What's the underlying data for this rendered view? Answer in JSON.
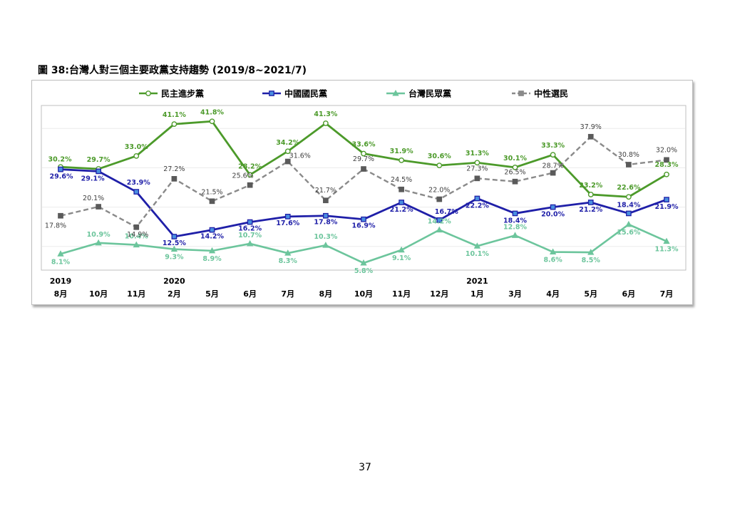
{
  "figure_title": "圖 38:台灣人對三個主要政黨支持趨勢 (2019/8~2021/7)",
  "page_number": "37",
  "chart_data": {
    "type": "line",
    "years": [
      {
        "label": "2019",
        "index": 0
      },
      {
        "label": "2020",
        "index": 3
      },
      {
        "label": "2021",
        "index": 11
      }
    ],
    "categories": [
      "8月",
      "10月",
      "11月",
      "2月",
      "5月",
      "6月",
      "7月",
      "8月",
      "10月",
      "11月",
      "12月",
      "1月",
      "3月",
      "4月",
      "5月",
      "6月",
      "7月"
    ],
    "ylim": [
      0,
      50
    ],
    "grid": true,
    "legend_position": "top",
    "series": [
      {
        "name": "民主進步黨",
        "color": "#4c9a2a",
        "marker": "circle",
        "dashed": false,
        "values": [
          30.2,
          29.7,
          33.0,
          41.1,
          41.8,
          28.2,
          34.2,
          41.3,
          33.6,
          31.9,
          30.6,
          31.3,
          30.1,
          33.3,
          23.2,
          22.6,
          28.3
        ],
        "labels": [
          "30.2%",
          "29.7%",
          "33.0%",
          "41.1%",
          "41.8%",
          "28.2%",
          "34.2%",
          "41.3%",
          "33.6%",
          "31.9%",
          "30.6%",
          "31.3%",
          "30.1%",
          "33.3%",
          "23.2%",
          "22.6%",
          "28.3%"
        ]
      },
      {
        "name": "中國國民黨",
        "color": "#1f1fa8",
        "marker": "square",
        "dashed": false,
        "values": [
          29.6,
          29.1,
          23.9,
          12.5,
          14.2,
          16.2,
          17.6,
          17.8,
          16.9,
          21.2,
          16.7,
          22.2,
          18.4,
          20.0,
          21.2,
          18.4,
          21.9
        ],
        "labels": [
          "29.6%",
          "29.1%",
          "23.9%",
          "12.5%",
          "14.2%",
          "16.2%",
          "17.6%",
          "17.8%",
          "16.9%",
          "21.2%",
          "16.7%",
          "22.2%",
          "18.4%",
          "20.0%",
          "21.2%",
          "18.4%",
          "21.9%"
        ]
      },
      {
        "name": "台灣民眾黨",
        "color": "#6cc59c",
        "marker": "triangle",
        "dashed": false,
        "values": [
          8.1,
          10.9,
          10.4,
          9.3,
          8.9,
          10.7,
          8.3,
          10.3,
          5.8,
          9.1,
          14.2,
          10.1,
          12.8,
          8.6,
          8.5,
          15.6,
          11.3
        ],
        "labels": [
          "8.1%",
          "10.9%",
          "10.4%",
          "9.3%",
          "8.9%",
          "10.7%",
          "8.3%",
          "10.3%",
          "5.8%",
          "9.1%",
          "14.2%",
          "10.1%",
          "12.8%",
          "8.6%",
          "8.5%",
          "15.6%",
          "11.3%"
        ]
      },
      {
        "name": "中性選民",
        "color": "#8a8a8a",
        "marker": "square",
        "dashed": true,
        "values": [
          17.8,
          20.1,
          14.9,
          27.2,
          21.5,
          25.6,
          31.6,
          21.7,
          29.7,
          24.5,
          22.0,
          27.3,
          26.5,
          28.7,
          37.9,
          30.8,
          32.0
        ],
        "labels": [
          "17.8%",
          "20.1%",
          "14.9%",
          "27.2%",
          "21.5%",
          "25.6%",
          "31.6%",
          "21.7%",
          "29.7%",
          "24.5%",
          "22.0%",
          "27.3%",
          "26.5%",
          "28.7%",
          "37.9%",
          "30.8%",
          "32.0%"
        ]
      }
    ]
  }
}
